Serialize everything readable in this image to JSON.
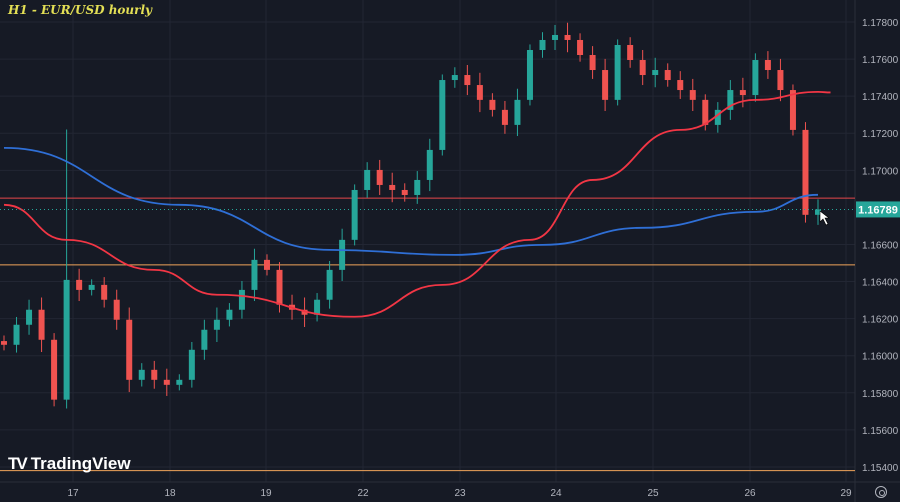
{
  "title": "H1 - EUR/USD hourly",
  "brand": "TradingView",
  "colors": {
    "background": "#161a25",
    "up": "#26a69a",
    "down": "#ef5350",
    "ma_blue": "#2f6fd6",
    "ma_red": "#f23645",
    "level_red": "#e5474b",
    "level_orange": "#f0a35a",
    "title": "#e3df55",
    "last_price_bg": "#26a69a"
  },
  "chart_data": {
    "type": "candlestick",
    "title": "H1 - EUR/USD hourly",
    "ylim": [
      1.1535,
      1.179
    ],
    "y_ticks": [
      "1.17800",
      "1.17600",
      "1.17400",
      "1.17200",
      "1.17000",
      "1.16600",
      "1.16400",
      "1.16200",
      "1.16000",
      "1.15800",
      "1.15600",
      "1.15400"
    ],
    "x_ticks": [
      "17",
      "18",
      "19",
      "22",
      "23",
      "24",
      "25",
      "26",
      "29"
    ],
    "grid": true,
    "closes": [
      1.16059,
      1.16167,
      1.16248,
      1.16086,
      1.15763,
      1.16409,
      1.16355,
      1.16382,
      1.16302,
      1.16194,
      1.1587,
      1.15924,
      1.1587,
      1.15843,
      1.1587,
      1.16032,
      1.1614,
      1.16194,
      1.16248,
      1.16355,
      1.16517,
      1.16463,
      1.16275,
      1.16248,
      1.16221,
      1.16302,
      1.16463,
      1.16625,
      1.16894,
      1.17002,
      1.16921,
      1.16894,
      1.16867,
      1.16948,
      1.1711,
      1.17487,
      1.17514,
      1.1746,
      1.1738,
      1.17326,
      1.17245,
      1.1738,
      1.17649,
      1.17703,
      1.1773,
      1.17703,
      1.17622,
      1.17541,
      1.1738,
      1.17676,
      1.17595,
      1.17514,
      1.17541,
      1.17487,
      1.17433,
      1.1738,
      1.17245,
      1.17326,
      1.17433,
      1.17406,
      1.17595,
      1.17541,
      1.17433,
      1.17218,
      1.1676,
      1.16789
    ],
    "moving_averages": [
      {
        "color": "#2f6fd6",
        "points": [
          [
            0,
            1.17121
          ],
          [
            14,
            1.16814
          ],
          [
            26,
            1.16571
          ],
          [
            36,
            1.16544
          ],
          [
            43,
            1.16598
          ],
          [
            51,
            1.1669
          ],
          [
            60,
            1.16776
          ],
          [
            65,
            1.16868
          ]
        ]
      },
      {
        "color": "#f23645",
        "points": [
          [
            0,
            1.16814
          ],
          [
            5,
            1.16625
          ],
          [
            12,
            1.16463
          ],
          [
            17,
            1.16329
          ],
          [
            28,
            1.1621
          ],
          [
            35,
            1.16382
          ],
          [
            42,
            1.16625
          ],
          [
            47,
            1.16948
          ],
          [
            54,
            1.17218
          ],
          [
            60,
            1.1738
          ],
          [
            65,
            1.17423
          ],
          [
            66,
            1.1742
          ]
        ]
      }
    ],
    "horizontal_levels": [
      {
        "price": 1.1685,
        "color": "#e5474b"
      },
      {
        "price": 1.1649,
        "color": "#f0a35a"
      },
      {
        "price": 1.1538,
        "color": "#f0a35a"
      }
    ],
    "last_price": "1.16789"
  }
}
